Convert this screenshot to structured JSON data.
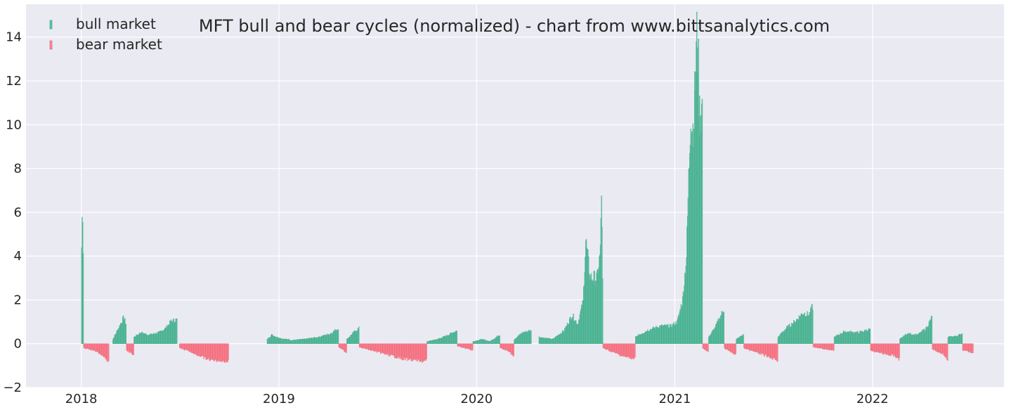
{
  "chart_data": {
    "type": "bar",
    "title": "MFT bull and bear cycles (normalized)  - chart from www.bittsanalytics.com",
    "xlabel": "",
    "ylabel": "",
    "ylim": [
      -2,
      15.5
    ],
    "yticks": [
      -2,
      0,
      2,
      4,
      6,
      8,
      10,
      12,
      14
    ],
    "ytick_labels": [
      "−2",
      "0",
      "2",
      "4",
      "6",
      "8",
      "10",
      "12",
      "14"
    ],
    "xlim": [
      "2017-09-21",
      "2022-09-01"
    ],
    "xticks": [
      "2018-01-01",
      "2019-01-01",
      "2020-01-01",
      "2021-01-01",
      "2022-01-01"
    ],
    "xtick_labels": [
      "2018",
      "2019",
      "2020",
      "2021",
      "2022"
    ],
    "grid": true,
    "legend_position": "top-left",
    "colors": {
      "bull": "#66c2a5",
      "bull_edge": "#2a9d7a",
      "bear": "#ff8a95",
      "bear_edge": "#e0526a",
      "background": "#eaeaf2",
      "grid": "#ffffff"
    },
    "series": [
      {
        "name": "bull market",
        "key": "bull",
        "segments": [
          {
            "start": "2018-01-01",
            "end": "2018-01-04",
            "points": [
              [
                "2018-01-01",
                4.4
              ],
              [
                "2018-01-02",
                5.7
              ],
              [
                "2018-01-03",
                6.1
              ],
              [
                "2018-01-04",
                4.4
              ]
            ]
          },
          {
            "start": "2018-02-28",
            "end": "2018-03-24",
            "points": [
              [
                "2018-02-28",
                0.2
              ],
              [
                "2018-03-06",
                0.5
              ],
              [
                "2018-03-14",
                0.9
              ],
              [
                "2018-03-20",
                1.2
              ],
              [
                "2018-03-24",
                0.9
              ]
            ]
          },
          {
            "start": "2018-04-08",
            "end": "2018-05-23",
            "points": [
              [
                "2018-04-08",
                0.3
              ],
              [
                "2018-04-20",
                0.5
              ],
              [
                "2018-05-05",
                0.4
              ],
              [
                "2018-05-23",
                0.5
              ]
            ]
          },
          {
            "start": "2018-05-24",
            "end": "2018-06-26",
            "points": [
              [
                "2018-05-24",
                0.5
              ],
              [
                "2018-06-05",
                0.7
              ],
              [
                "2018-06-15",
                1.0
              ],
              [
                "2018-06-26",
                1.1
              ]
            ]
          },
          {
            "start": "2018-12-10",
            "end": "2019-01-20",
            "points": [
              [
                "2018-12-10",
                0.2
              ],
              [
                "2018-12-18",
                0.4
              ],
              [
                "2018-12-28",
                0.3
              ],
              [
                "2019-01-10",
                0.2
              ],
              [
                "2019-01-20",
                0.2
              ]
            ]
          },
          {
            "start": "2019-01-21",
            "end": "2019-04-20",
            "points": [
              [
                "2019-01-21",
                0.15
              ],
              [
                "2019-02-15",
                0.2
              ],
              [
                "2019-03-15",
                0.3
              ],
              [
                "2019-04-05",
                0.45
              ],
              [
                "2019-04-20",
                0.7
              ]
            ]
          },
          {
            "start": "2019-05-06",
            "end": "2019-05-28",
            "points": [
              [
                "2019-05-06",
                0.2
              ],
              [
                "2019-05-18",
                0.5
              ],
              [
                "2019-05-28",
                0.7
              ]
            ]
          },
          {
            "start": "2019-10-01",
            "end": "2019-11-25",
            "points": [
              [
                "2019-10-01",
                0.1
              ],
              [
                "2019-10-20",
                0.2
              ],
              [
                "2019-11-05",
                0.35
              ],
              [
                "2019-11-25",
                0.6
              ]
            ]
          },
          {
            "start": "2019-12-25",
            "end": "2020-02-12",
            "points": [
              [
                "2019-12-25",
                0.1
              ],
              [
                "2020-01-10",
                0.2
              ],
              [
                "2020-01-25",
                0.1
              ],
              [
                "2020-02-12",
                0.4
              ]
            ]
          },
          {
            "start": "2020-03-10",
            "end": "2020-04-10",
            "points": [
              [
                "2020-03-10",
                0.2
              ],
              [
                "2020-03-25",
                0.5
              ],
              [
                "2020-04-10",
                0.6
              ]
            ]
          },
          {
            "start": "2020-04-25",
            "end": "2020-08-20",
            "points": [
              [
                "2020-04-25",
                0.3
              ],
              [
                "2020-05-20",
                0.2
              ],
              [
                "2020-06-10",
                0.6
              ],
              [
                "2020-06-25",
                1.3
              ],
              [
                "2020-07-05",
                0.9
              ],
              [
                "2020-07-15",
                1.9
              ],
              [
                "2020-07-20",
                4.7
              ],
              [
                "2020-07-28",
                3.0
              ],
              [
                "2020-08-10",
                3.0
              ],
              [
                "2020-08-16",
                4.2
              ],
              [
                "2020-08-18",
                7.1
              ],
              [
                "2020-08-20",
                2.8
              ]
            ]
          },
          {
            "start": "2020-10-20",
            "end": "2021-02-20",
            "points": [
              [
                "2020-10-20",
                0.3
              ],
              [
                "2020-11-10",
                0.6
              ],
              [
                "2020-12-05",
                0.8
              ],
              [
                "2020-12-25",
                0.8
              ],
              [
                "2021-01-05",
                1.0
              ],
              [
                "2021-01-15",
                2.0
              ],
              [
                "2021-01-22",
                4.0
              ],
              [
                "2021-01-26",
                7.5
              ],
              [
                "2021-01-30",
                10.8
              ],
              [
                "2021-02-02",
                9.5
              ],
              [
                "2021-02-05",
                10.5
              ],
              [
                "2021-02-08",
                12.7
              ],
              [
                "2021-02-11",
                14.5
              ],
              [
                "2021-02-15",
                10.5
              ],
              [
                "2021-02-20",
                10.8
              ]
            ]
          },
          {
            "start": "2021-03-04",
            "end": "2021-04-01",
            "points": [
              [
                "2021-03-04",
                0.3
              ],
              [
                "2021-03-15",
                0.7
              ],
              [
                "2021-03-25",
                1.2
              ],
              [
                "2021-04-01",
                1.6
              ]
            ]
          },
          {
            "start": "2021-04-24",
            "end": "2021-05-07",
            "points": [
              [
                "2021-04-24",
                0.2
              ],
              [
                "2021-05-07",
                0.4
              ]
            ]
          },
          {
            "start": "2021-07-10",
            "end": "2021-09-12",
            "points": [
              [
                "2021-07-10",
                0.3
              ],
              [
                "2021-07-25",
                0.7
              ],
              [
                "2021-08-10",
                1.0
              ],
              [
                "2021-08-25",
                1.4
              ],
              [
                "2021-09-05",
                1.3
              ],
              [
                "2021-09-12",
                1.7
              ]
            ]
          },
          {
            "start": "2021-10-22",
            "end": "2021-12-27",
            "points": [
              [
                "2021-10-22",
                0.3
              ],
              [
                "2021-11-10",
                0.55
              ],
              [
                "2021-12-05",
                0.5
              ],
              [
                "2021-12-27",
                0.65
              ]
            ]
          },
          {
            "start": "2022-02-20",
            "end": "2022-04-20",
            "points": [
              [
                "2022-02-20",
                0.2
              ],
              [
                "2022-03-05",
                0.45
              ],
              [
                "2022-03-25",
                0.4
              ],
              [
                "2022-04-10",
                0.7
              ],
              [
                "2022-04-20",
                1.2
              ]
            ]
          },
          {
            "start": "2022-05-20",
            "end": "2022-06-15",
            "points": [
              [
                "2022-05-20",
                0.3
              ],
              [
                "2022-06-05",
                0.35
              ],
              [
                "2022-06-15",
                0.45
              ]
            ]
          }
        ]
      },
      {
        "name": "bear market",
        "key": "bear",
        "segments": [
          {
            "start": "2018-01-05",
            "end": "2018-02-20",
            "points": [
              [
                "2018-01-05",
                -0.2
              ],
              [
                "2018-01-25",
                -0.3
              ],
              [
                "2018-02-10",
                -0.55
              ],
              [
                "2018-02-20",
                -0.8
              ]
            ]
          },
          {
            "start": "2018-03-25",
            "end": "2018-04-07",
            "points": [
              [
                "2018-03-25",
                -0.3
              ],
              [
                "2018-04-07",
                -0.5
              ]
            ]
          },
          {
            "start": "2018-07-01",
            "end": "2018-09-29",
            "points": [
              [
                "2018-07-01",
                -0.2
              ],
              [
                "2018-07-25",
                -0.4
              ],
              [
                "2018-08-20",
                -0.7
              ],
              [
                "2018-09-29",
                -0.8
              ]
            ]
          },
          {
            "start": "2019-04-21",
            "end": "2019-05-05",
            "points": [
              [
                "2019-04-21",
                -0.15
              ],
              [
                "2019-05-05",
                -0.4
              ]
            ]
          },
          {
            "start": "2019-05-29",
            "end": "2019-09-30",
            "points": [
              [
                "2019-05-29",
                -0.15
              ],
              [
                "2019-06-20",
                -0.3
              ],
              [
                "2019-07-20",
                -0.5
              ],
              [
                "2019-08-20",
                -0.7
              ],
              [
                "2019-09-30",
                -0.8
              ]
            ]
          },
          {
            "start": "2019-11-26",
            "end": "2019-12-24",
            "points": [
              [
                "2019-11-26",
                -0.1
              ],
              [
                "2019-12-24",
                -0.3
              ]
            ]
          },
          {
            "start": "2020-02-13",
            "end": "2020-03-09",
            "points": [
              [
                "2020-02-13",
                -0.2
              ],
              [
                "2020-03-01",
                -0.35
              ],
              [
                "2020-03-09",
                -0.6
              ]
            ]
          },
          {
            "start": "2020-08-21",
            "end": "2020-10-19",
            "points": [
              [
                "2020-08-21",
                -0.2
              ],
              [
                "2020-09-10",
                -0.4
              ],
              [
                "2020-10-01",
                -0.6
              ],
              [
                "2020-10-19",
                -0.65
              ]
            ]
          },
          {
            "start": "2021-02-21",
            "end": "2021-03-03",
            "points": [
              [
                "2021-02-21",
                -0.2
              ],
              [
                "2021-03-03",
                -0.4
              ]
            ]
          },
          {
            "start": "2021-04-02",
            "end": "2021-04-23",
            "points": [
              [
                "2021-04-02",
                -0.2
              ],
              [
                "2021-04-23",
                -0.5
              ]
            ]
          },
          {
            "start": "2021-05-08",
            "end": "2021-07-09",
            "points": [
              [
                "2021-05-08",
                -0.2
              ],
              [
                "2021-06-01",
                -0.4
              ],
              [
                "2021-06-25",
                -0.6
              ],
              [
                "2021-07-09",
                -0.75
              ]
            ]
          },
          {
            "start": "2021-09-13",
            "end": "2021-10-21",
            "points": [
              [
                "2021-09-13",
                -0.15
              ],
              [
                "2021-10-05",
                -0.25
              ],
              [
                "2021-10-21",
                -0.3
              ]
            ]
          },
          {
            "start": "2021-12-28",
            "end": "2022-02-19",
            "points": [
              [
                "2021-12-28",
                -0.3
              ],
              [
                "2022-01-20",
                -0.45
              ],
              [
                "2022-02-10",
                -0.55
              ],
              [
                "2022-02-19",
                -0.7
              ]
            ]
          },
          {
            "start": "2022-04-21",
            "end": "2022-05-19",
            "points": [
              [
                "2022-04-21",
                -0.25
              ],
              [
                "2022-05-10",
                -0.45
              ],
              [
                "2022-05-19",
                -0.7
              ]
            ]
          },
          {
            "start": "2022-06-16",
            "end": "2022-07-05",
            "points": [
              [
                "2022-06-16",
                -0.3
              ],
              [
                "2022-07-05",
                -0.4
              ]
            ]
          }
        ]
      }
    ]
  }
}
